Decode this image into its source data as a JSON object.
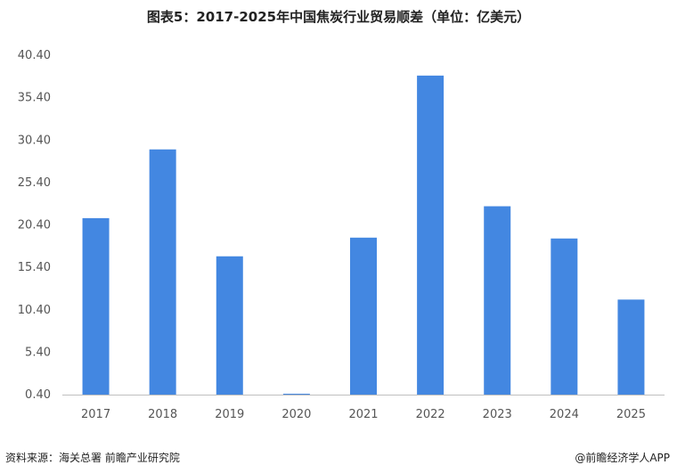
{
  "header": {
    "title": "图表5：2017-2025年中国焦炭行业贸易顺差（单位：亿美元）"
  },
  "footer": {
    "source": "资料来源：海关总署  前瞻产业研究院",
    "brand": "@前瞻经济学人APP"
  },
  "colors": {
    "bar": "#4387e1",
    "axis": "#bfbfbf"
  },
  "chart_data": {
    "type": "bar",
    "title": "图表5：2017-2025年中国焦炭行业贸易顺差（单位：亿美元）",
    "categories": [
      "2017",
      "2018",
      "2019",
      "2020",
      "2021",
      "2022",
      "2023",
      "2024",
      "2025"
    ],
    "values": [
      21.2,
      29.3,
      16.7,
      0.5,
      18.9,
      38.0,
      22.6,
      18.8,
      11.6
    ],
    "y_ticks": [
      "0.40",
      "5.40",
      "10.40",
      "15.40",
      "20.40",
      "25.40",
      "30.40",
      "35.40",
      "40.40"
    ],
    "ylim": [
      0.4,
      40.4
    ],
    "xlabel": "",
    "ylabel": "",
    "grid": false,
    "legend": "none"
  }
}
